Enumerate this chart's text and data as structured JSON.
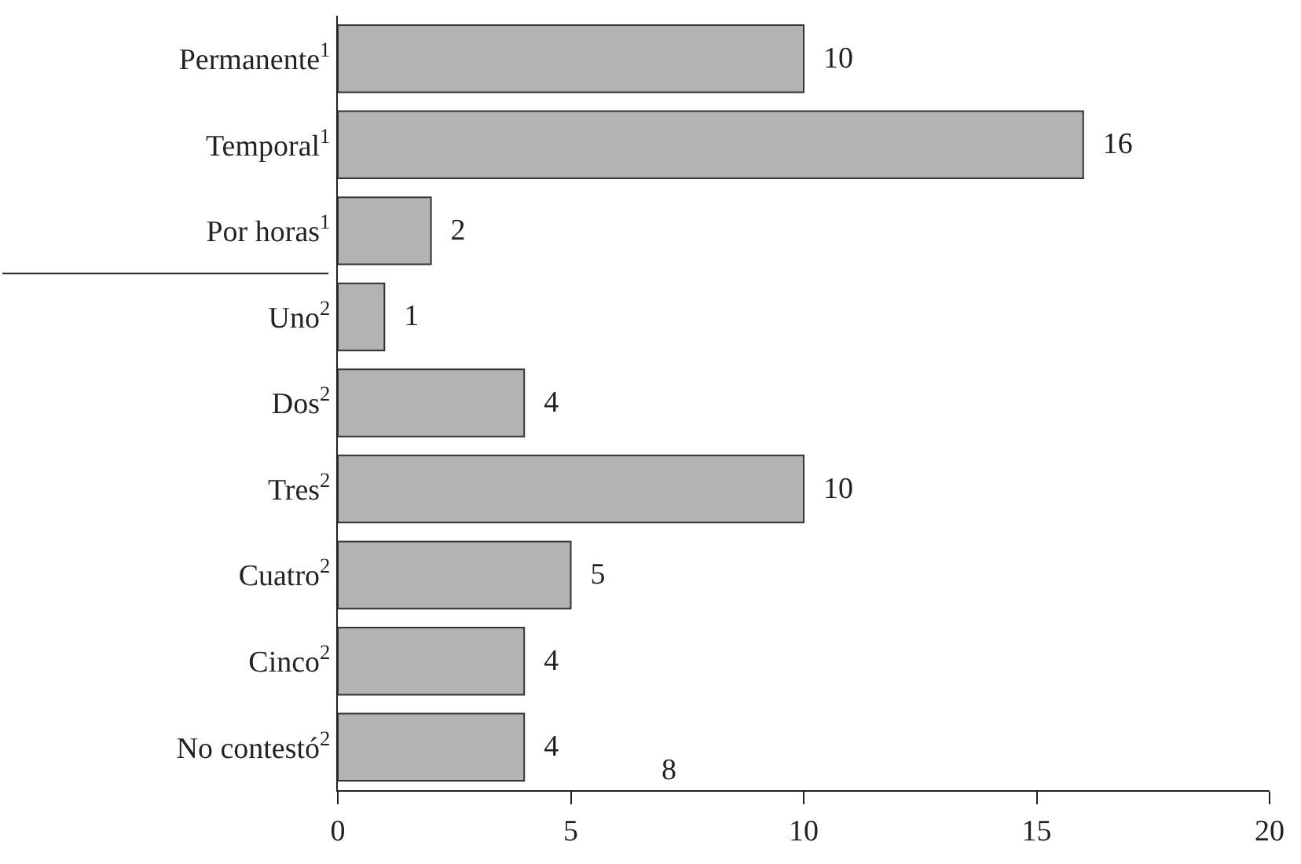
{
  "chart_data": {
    "type": "bar",
    "orientation": "horizontal",
    "categories": [
      "Permanente$^{1}$",
      "Temporal$^{1}$",
      "Por horas$^{1}$",
      "Uno$^{2}$",
      "Dos$^{2}$",
      "Tres$^{2}$",
      "Cuatro$^{2}$",
      "Cinco$^{2}$",
      "No contestó$^{2}$"
    ],
    "values": [
      10,
      16,
      2,
      1,
      4,
      10,
      5,
      4,
      4
    ],
    "color": "#b3b3b3",
    "xlim": [
      0,
      20
    ],
    "xticks": [
      0,
      5,
      10,
      15,
      20
    ],
    "data_labels": true,
    "legend": false,
    "annotations": [
      "8"
    ]
  }
}
